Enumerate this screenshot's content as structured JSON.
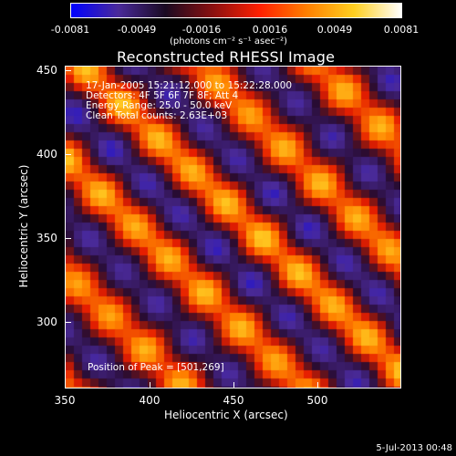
{
  "colorbar": {
    "tick_labels": [
      "-0.0081",
      "-0.0049",
      "-0.0016",
      "0.0016",
      "0.0049",
      "0.0081"
    ],
    "units": "(photons cm⁻² s⁻¹ asec⁻²)",
    "colors": [
      "#0000ff",
      "#4a2a9a",
      "#1a0a22",
      "#8a1010",
      "#ff2000",
      "#ff8000",
      "#ffd020",
      "#ffffff"
    ]
  },
  "title": "Reconstructed RHESSI Image",
  "info": {
    "line1": "17-Jan-2005 15:21:12.000 to 15:22:28.000",
    "line2": "Detectors: 4F 5F 6F 7F 8F; Att 4",
    "line3": "Energy Range: 25.0 - 50.0 keV",
    "line4": "Clean     Total counts: 2.63E+03"
  },
  "peak_text": "Position of Peak = [501,269]",
  "axes": {
    "x_label": "Heliocentric X (arcsec)",
    "y_label": "Heliocentric Y (arcsec)",
    "x_ticks": [
      "350",
      "400",
      "450",
      "500"
    ],
    "y_ticks": [
      "450",
      "400",
      "350",
      "300"
    ]
  },
  "footer_date": "5-Jul-2013 00:48"
}
